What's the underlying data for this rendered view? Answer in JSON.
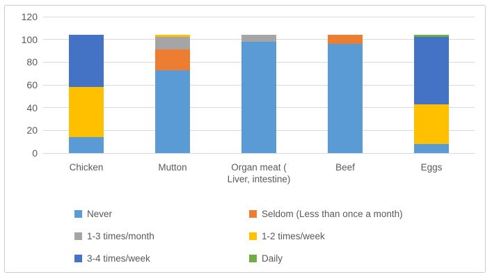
{
  "figure": {
    "background": "#ffffff",
    "border_color": "#c9cdd2"
  },
  "chart_data": {
    "type": "bar",
    "stacked": true,
    "title": "",
    "xlabel": "",
    "ylabel": "",
    "categories": [
      "Chicken",
      "Mutton",
      "Organ meat ( Liver, intestine)",
      "Beef",
      "Eggs"
    ],
    "category_display": [
      "Chicken",
      "Mutton",
      "Organ meat (\nLiver, intestine)",
      "Beef",
      "Eggs"
    ],
    "series": [
      {
        "name": "Never",
        "color": "#5B9BD5",
        "values": [
          14,
          73,
          98,
          96,
          8
        ]
      },
      {
        "name": "Seldom (Less than once a month)",
        "color": "#ED7D31",
        "values": [
          0,
          18,
          0,
          8,
          0
        ]
      },
      {
        "name": "1-3 times/month",
        "color": "#A5A5A5",
        "values": [
          0,
          11,
          6,
          0,
          0
        ]
      },
      {
        "name": "1-2 times/week",
        "color": "#FFC000",
        "values": [
          44,
          2,
          0,
          0,
          35
        ]
      },
      {
        "name": "3-4 times/week",
        "color": "#4472C4",
        "values": [
          46,
          0,
          0,
          0,
          59
        ]
      },
      {
        "name": "Daily",
        "color": "#70AD47",
        "values": [
          0,
          0,
          0,
          0,
          2
        ]
      }
    ],
    "bar_totals": [
      104,
      104,
      104,
      104,
      104
    ],
    "ylim": [
      0,
      120
    ],
    "yticks": [
      0,
      20,
      40,
      60,
      80,
      100,
      120
    ],
    "grid": true,
    "gridline_color": "#d9d9d9",
    "axis_text_color": "#595959",
    "legend_position": "bottom",
    "legend_columns": 2,
    "legend_column_order": [
      [
        "Never",
        "1-3 times/month",
        "3-4 times/week"
      ],
      [
        "Seldom (Less than once a month)",
        "1-2 times/week",
        "Daily"
      ]
    ]
  }
}
